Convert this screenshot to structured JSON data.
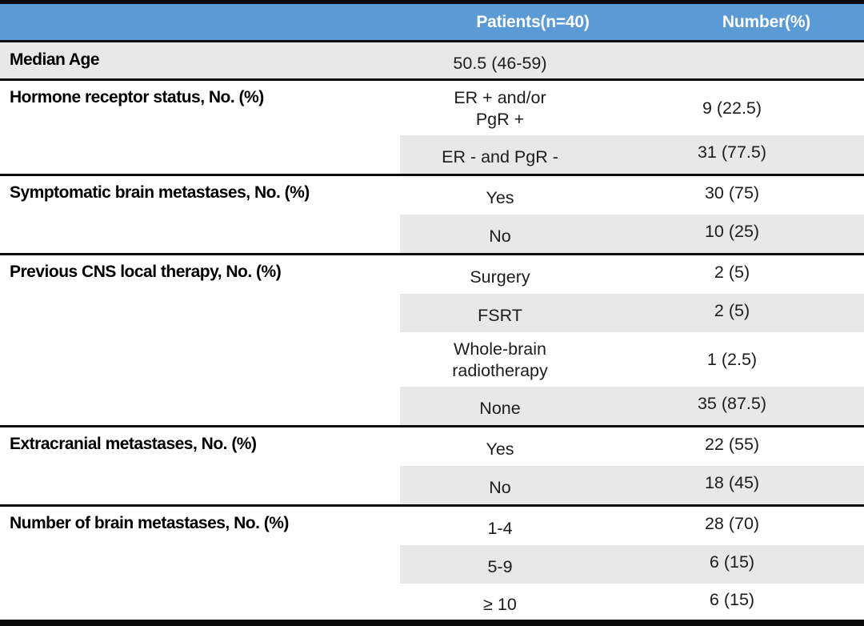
{
  "table": {
    "colors": {
      "header_bg": "#5B9BD5",
      "header_text": "#FFFFFF",
      "row_shade": "#E9E8E8",
      "rule": "#0d0d0d"
    },
    "header": {
      "patients_col": "Patients(n=40)",
      "number_col": "Number(%)"
    },
    "sections": [
      {
        "label": "Median Age",
        "rows": [
          {
            "value": "50.5 (46-59)",
            "number": ""
          }
        ]
      },
      {
        "label": "Hormone receptor status, No. (%)",
        "rows": [
          {
            "value": "ER + and/or\nPgR +",
            "number": "9 (22.5)"
          },
          {
            "value": "ER - and PgR -",
            "number": "31 (77.5)"
          }
        ]
      },
      {
        "label": "Symptomatic brain metastases, No. (%)",
        "rows": [
          {
            "value": "Yes",
            "number": "30 (75)"
          },
          {
            "value": "No",
            "number": "10 (25)"
          }
        ]
      },
      {
        "label": "Previous CNS local therapy, No. (%)",
        "rows": [
          {
            "value": "Surgery",
            "number": "2 (5)"
          },
          {
            "value": "FSRT",
            "number": "2 (5)"
          },
          {
            "value": "Whole-brain\nradiotherapy",
            "number": "1 (2.5)"
          },
          {
            "value": "None",
            "number": "35 (87.5)"
          }
        ]
      },
      {
        "label": "Extracranial metastases, No. (%)",
        "rows": [
          {
            "value": "Yes",
            "number": "22 (55)"
          },
          {
            "value": "No",
            "number": "18 (45)"
          }
        ]
      },
      {
        "label": "Number of brain metastases, No. (%)",
        "rows": [
          {
            "value": "1-4",
            "number": "28 (70)"
          },
          {
            "value": "5-9",
            "number": "6 (15)"
          },
          {
            "value": "≥ 10",
            "number": "6 (15)"
          }
        ]
      }
    ]
  }
}
